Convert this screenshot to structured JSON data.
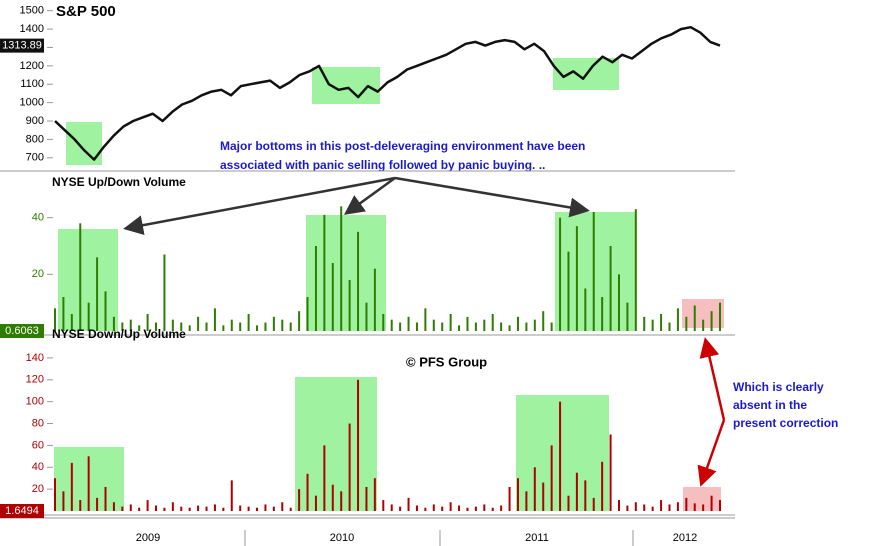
{
  "chart_data": [
    {
      "type": "line",
      "title": "S&P 500",
      "color": "#111111",
      "values": [
        900,
        850,
        800,
        740,
        690,
        760,
        820,
        870,
        900,
        920,
        940,
        900,
        950,
        990,
        1010,
        1040,
        1060,
        1070,
        1040,
        1090,
        1100,
        1110,
        1120,
        1080,
        1110,
        1150,
        1170,
        1200,
        1100,
        1070,
        1080,
        1030,
        1090,
        1060,
        1110,
        1140,
        1180,
        1200,
        1220,
        1240,
        1260,
        1290,
        1320,
        1330,
        1310,
        1330,
        1340,
        1330,
        1290,
        1320,
        1280,
        1200,
        1140,
        1170,
        1130,
        1200,
        1250,
        1220,
        1260,
        1240,
        1280,
        1320,
        1350,
        1370,
        1400,
        1410,
        1380,
        1330,
        1310
      ],
      "last_label": "1313.89",
      "ylim": [
        650,
        1520
      ],
      "yticks": [
        700,
        800,
        900,
        1000,
        1100,
        1200,
        1300,
        1400,
        1500
      ]
    },
    {
      "type": "bar",
      "title": "NYSE Up/Down Volume",
      "color": "#2e7d00",
      "values": [
        8,
        12,
        6,
        38,
        10,
        26,
        14,
        5,
        3,
        4,
        2,
        6,
        3,
        27,
        4,
        3,
        2,
        5,
        3,
        8,
        2,
        4,
        3,
        6,
        2,
        3,
        5,
        4,
        3,
        7,
        12,
        30,
        41,
        24,
        44,
        18,
        35,
        10,
        22,
        6,
        4,
        3,
        5,
        3,
        8,
        4,
        3,
        6,
        2,
        5,
        3,
        4,
        6,
        3,
        2,
        5,
        3,
        4,
        7,
        3,
        40,
        28,
        37,
        15,
        42,
        12,
        30,
        20,
        10,
        43,
        5,
        4,
        6,
        3,
        8,
        5,
        9,
        4,
        7,
        10
      ],
      "last_label": "0.6063",
      "ylim": [
        0,
        48
      ],
      "yticks": [
        20,
        40
      ]
    },
    {
      "type": "bar",
      "title": "NYSE Down/Up Volume",
      "color": "#b00000",
      "values": [
        30,
        18,
        44,
        10,
        50,
        12,
        22,
        8,
        4,
        6,
        3,
        10,
        5,
        3,
        8,
        4,
        3,
        5,
        4,
        6,
        3,
        28,
        5,
        4,
        3,
        6,
        4,
        8,
        3,
        20,
        34,
        14,
        60,
        24,
        18,
        80,
        120,
        22,
        30,
        10,
        6,
        4,
        12,
        5,
        3,
        6,
        4,
        8,
        5,
        3,
        4,
        6,
        3,
        5,
        22,
        30,
        18,
        40,
        26,
        60,
        100,
        14,
        35,
        28,
        12,
        45,
        70,
        10,
        5,
        8,
        6,
        4,
        10,
        6,
        8,
        12,
        7,
        6,
        14,
        10
      ],
      "last_label": "1.6494",
      "ylim": [
        0,
        150
      ],
      "yticks": [
        20,
        40,
        60,
        80,
        100,
        120,
        140
      ]
    }
  ],
  "x_labels": [
    "2009",
    "2010",
    "2011",
    "2012"
  ],
  "annotations": [
    "Major bottoms in this post-deleveraging environment have been",
    "associated with panic selling followed by panic buying. ..",
    "© PFS Group",
    "Which is clearly",
    "absent in the",
    "present correction"
  ]
}
